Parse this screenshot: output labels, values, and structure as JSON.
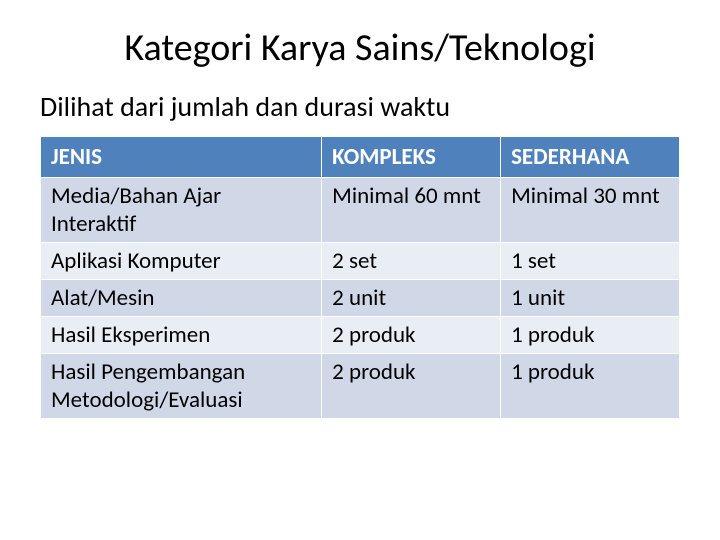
{
  "title": "Kategori Karya Sains/Teknologi",
  "subtitle": "Dilihat dari jumlah dan durasi waktu",
  "table": {
    "headers": {
      "jenis": "JENIS",
      "kompleks": "KOMPLEKS",
      "sederhana": "SEDERHANA"
    },
    "rows": [
      {
        "jenis": "Media/Bahan Ajar Interaktif",
        "kompleks": " Minimal  60 mnt",
        "sederhana": "Minimal 30 mnt"
      },
      {
        "jenis": "Aplikasi Komputer",
        "kompleks": "2 set",
        "sederhana": "1 set"
      },
      {
        "jenis": "Alat/Mesin",
        "kompleks": "2 unit",
        "sederhana": "1 unit"
      },
      {
        "jenis": "Hasil Eksperimen",
        "kompleks": "2 produk",
        "sederhana": "1 produk"
      },
      {
        "jenis": "Hasil Pengembangan Metodologi/Evaluasi",
        "kompleks": "2 produk",
        "sederhana": "1 produk"
      }
    ]
  },
  "colors": {
    "header_bg": "#4f81bd",
    "header_text": "#ffffff",
    "row_odd_bg": "#d0d8e8",
    "row_even_bg": "#e9edf4",
    "text": "#000000",
    "page_bg": "#ffffff"
  },
  "fonts": {
    "title_size": 38,
    "subtitle_size": 28,
    "table_size": 23,
    "family": "Calibri"
  }
}
